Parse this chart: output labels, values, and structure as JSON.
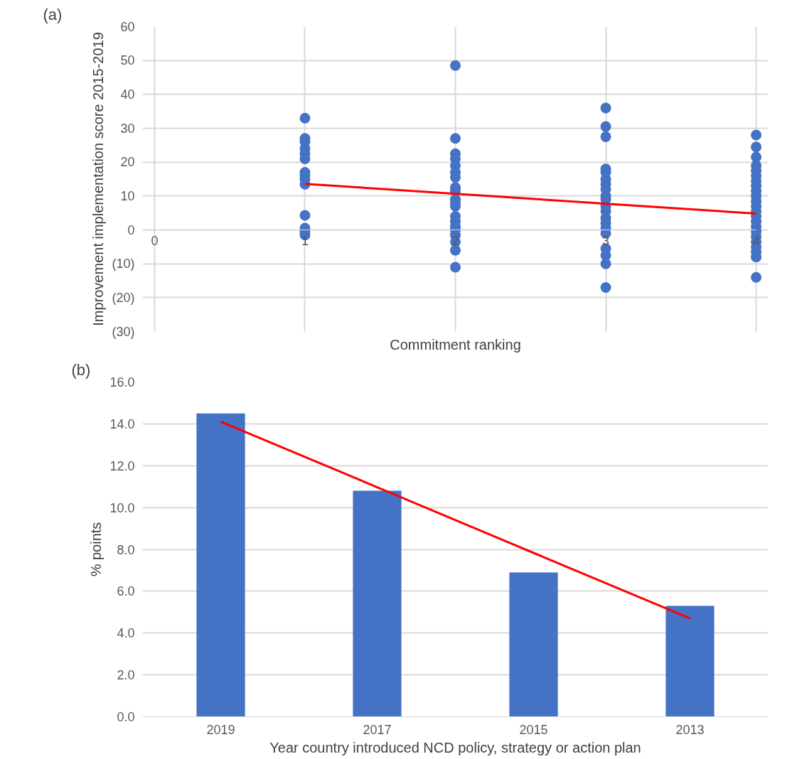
{
  "chart_data": [
    {
      "type": "scatter",
      "title": "(a)",
      "xlabel": "Commitment ranking",
      "ylabel": "Improvement implementation score 2015-2019",
      "xlim": [
        0,
        4
      ],
      "xticks": [
        0,
        1,
        2,
        3,
        4
      ],
      "ylim": [
        -30,
        60
      ],
      "yticks": [
        {
          "value": -30,
          "label": "(30)"
        },
        {
          "value": -20,
          "label": "(20)"
        },
        {
          "value": -10,
          "label": "(10)"
        },
        0,
        10,
        20,
        30,
        40,
        50,
        60
      ],
      "grid": true,
      "series": [
        {
          "marker": "circle",
          "color": "#4472c4",
          "x": [
            1,
            1,
            1,
            1,
            1,
            1,
            1,
            1,
            1,
            1,
            1,
            1,
            1,
            1,
            2,
            2,
            2,
            2,
            2,
            2,
            2,
            2,
            2,
            2,
            2,
            2,
            2,
            2,
            2,
            2,
            2,
            2,
            2,
            2,
            3,
            3,
            3,
            3,
            3,
            3,
            3,
            3,
            3,
            3,
            3,
            3,
            3,
            3,
            3,
            3,
            3,
            3,
            3,
            3,
            4,
            4,
            4,
            4,
            4,
            4,
            4,
            4,
            4,
            4,
            4,
            4,
            4,
            4,
            4,
            4,
            4,
            4,
            4,
            4,
            4,
            4,
            4
          ],
          "values": [
            33,
            27,
            26,
            24,
            22.5,
            21,
            17,
            16,
            15,
            13.5,
            4.3,
            0.5,
            -0.5,
            -1.5,
            48.5,
            27,
            22.5,
            21,
            19,
            17,
            15.5,
            12.5,
            11.5,
            9,
            8,
            7,
            4,
            2.5,
            1,
            0,
            -1.5,
            -3.5,
            -6,
            -11,
            36,
            30.5,
            27.5,
            18,
            17,
            15,
            13.5,
            12,
            10,
            9,
            7,
            5.5,
            3.5,
            2,
            0.5,
            -1,
            -5.5,
            -7.5,
            -10,
            -17,
            28,
            24.5,
            21.5,
            19,
            17.5,
            16,
            14.5,
            13,
            11.5,
            10,
            8.5,
            7,
            5.5,
            4,
            2.5,
            1,
            -0.5,
            -2,
            -3.5,
            -5,
            -6.5,
            -8,
            -14
          ]
        },
        {
          "type": "line",
          "color": "#ff0000",
          "x": [
            1,
            4
          ],
          "values": [
            13.6,
            4.8
          ]
        }
      ]
    },
    {
      "type": "bar",
      "title": "(b)",
      "xlabel": "Year country introduced NCD policy, strategy or action plan",
      "ylabel": "% points",
      "categories": [
        "2019",
        "2017",
        "2015",
        "2013"
      ],
      "ylim": [
        0,
        16
      ],
      "yticks": [
        {
          "value": 0,
          "label": "0.0"
        },
        {
          "value": 2,
          "label": "2.0"
        },
        {
          "value": 4,
          "label": "4.0"
        },
        {
          "value": 6,
          "label": "6.0"
        },
        {
          "value": 8,
          "label": "8.0"
        },
        {
          "value": 10,
          "label": "10.0"
        },
        {
          "value": 12,
          "label": "12.0"
        },
        {
          "value": 14,
          "label": "14.0"
        },
        {
          "value": 16,
          "label": "16.0"
        }
      ],
      "grid": "y",
      "series": [
        {
          "color": "#4472c4",
          "values": [
            14.5,
            10.8,
            6.9,
            5.3
          ]
        },
        {
          "type": "line",
          "color": "#ff0000",
          "values": [
            14.1,
            10.97,
            7.83,
            4.7
          ]
        }
      ]
    }
  ]
}
